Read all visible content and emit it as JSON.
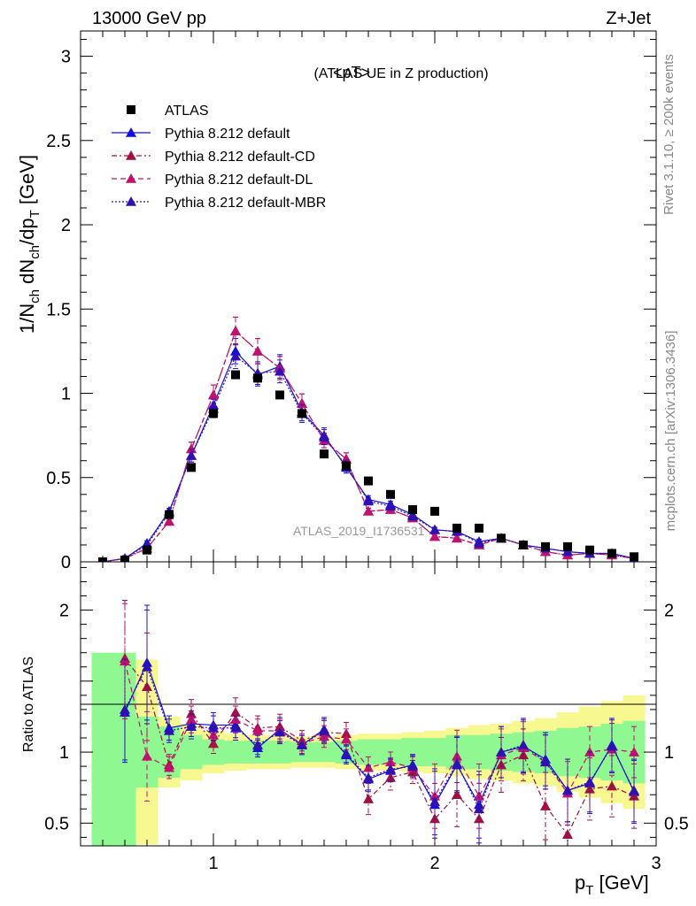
{
  "header": {
    "energy_label": "13000 GeV pp",
    "process_label": "Z+Jet",
    "observable_title": "<pT>",
    "observable_subtitle": "(ATLAS UE in Z production)",
    "watermark": "ATLAS_2019_I1736531",
    "side_rivet": "Rivet 3.1.10, ≥ 200k events",
    "side_mcplots": "mcplots.cern.ch [arXiv:1306.3436]"
  },
  "colors": {
    "atlas": "#000000",
    "default": "#1010dd",
    "cd": "#a01040",
    "dl": "#c01070",
    "mbr": "#3010b0",
    "band_inner": "#90f890",
    "band_outer": "#f8f890"
  },
  "chart_data": [
    {
      "type": "scatter",
      "panel": "main",
      "ylabel": "1/N_ch dN_ch/dp_T [GeV]",
      "ylim": [
        0,
        3.15
      ],
      "y_ticks": [
        0,
        0.5,
        1,
        1.5,
        2,
        2.5,
        3
      ],
      "y_tick_labels": [
        "0",
        "0.5",
        "1",
        "1.5",
        "2",
        "2.5",
        "3"
      ],
      "legend_placement": "top-left",
      "x": [
        0.5,
        0.6,
        0.7,
        0.8,
        0.9,
        1.0,
        1.1,
        1.2,
        1.3,
        1.4,
        1.5,
        1.6,
        1.7,
        1.8,
        1.9,
        2.0,
        2.1,
        2.2,
        2.3,
        2.4,
        2.5,
        2.6,
        2.7,
        2.8,
        2.9
      ],
      "series": [
        {
          "name": "ATLAS",
          "style": "marker",
          "values": [
            0.0,
            0.01,
            0.07,
            0.28,
            0.56,
            0.88,
            1.11,
            1.09,
            0.99,
            0.88,
            0.64,
            0.57,
            0.48,
            0.4,
            0.31,
            0.3,
            0.2,
            0.2,
            0.14,
            0.1,
            0.09,
            0.09,
            0.07,
            0.05,
            0.03
          ]
        },
        {
          "name": "Pythia 8.212 default",
          "style": "solid",
          "values": [
            0.0,
            0.02,
            0.11,
            0.3,
            0.63,
            0.93,
            1.25,
            1.11,
            1.16,
            0.89,
            0.75,
            0.56,
            0.37,
            0.34,
            0.28,
            0.19,
            0.18,
            0.12,
            0.14,
            0.1,
            0.08,
            0.06,
            0.05,
            0.05,
            0.02
          ]
        },
        {
          "name": "Pythia 8.212 default-CD",
          "style": "dash-dot",
          "values": [
            0.0,
            0.02,
            0.08,
            0.24,
            0.67,
            0.99,
            1.37,
            1.25,
            1.15,
            0.94,
            0.72,
            0.61,
            0.3,
            0.31,
            0.26,
            0.15,
            0.14,
            0.1,
            0.14,
            0.1,
            0.06,
            0.04,
            0.05,
            0.04,
            0.02
          ]
        },
        {
          "name": "Pythia 8.212 default-DL",
          "style": "dashed",
          "values": [
            0.0,
            0.02,
            0.08,
            0.24,
            0.67,
            0.99,
            1.37,
            1.25,
            1.15,
            0.94,
            0.72,
            0.61,
            0.3,
            0.31,
            0.26,
            0.15,
            0.14,
            0.1,
            0.14,
            0.1,
            0.06,
            0.04,
            0.05,
            0.04,
            0.02
          ]
        },
        {
          "name": "Pythia 8.212 default-MBR",
          "style": "dotted",
          "values": [
            0.0,
            0.02,
            0.1,
            0.29,
            0.63,
            0.91,
            1.22,
            1.12,
            1.13,
            0.88,
            0.74,
            0.57,
            0.36,
            0.33,
            0.27,
            0.19,
            0.18,
            0.11,
            0.14,
            0.1,
            0.08,
            0.06,
            0.05,
            0.05,
            0.02
          ]
        }
      ]
    },
    {
      "type": "line",
      "panel": "ratio",
      "ylabel": "Ratio to ATLAS",
      "xlabel": "p_T [GeV]",
      "xlim": [
        0.4,
        3.0
      ],
      "ylim": [
        0.34,
        2.34
      ],
      "y_ticks": [
        0.5,
        1,
        2
      ],
      "y_tick_labels": [
        "0.5",
        "1",
        "2"
      ],
      "x_ticks": [
        1,
        2,
        3
      ],
      "x_tick_labels": [
        "1",
        "2",
        "3"
      ],
      "reference_line": 1,
      "bands": {
        "edges": [
          0.45,
          0.55,
          0.65,
          0.75,
          0.85,
          0.95,
          1.05,
          1.15,
          1.25,
          1.35,
          1.45,
          1.55,
          1.65,
          1.75,
          1.85,
          1.95,
          2.05,
          2.15,
          2.25,
          2.35,
          2.45,
          2.55,
          2.65,
          2.75,
          2.85,
          2.95
        ],
        "inner_half_width": [
          0.7,
          0.7,
          0.25,
          0.18,
          0.12,
          0.09,
          0.08,
          0.08,
          0.08,
          0.07,
          0.07,
          0.08,
          0.09,
          0.09,
          0.1,
          0.1,
          0.12,
          0.12,
          0.13,
          0.14,
          0.15,
          0.17,
          0.18,
          0.2,
          0.22
        ],
        "outer_half_width": [
          0.7,
          0.7,
          0.65,
          0.25,
          0.2,
          0.15,
          0.13,
          0.12,
          0.12,
          0.11,
          0.11,
          0.12,
          0.13,
          0.13,
          0.14,
          0.15,
          0.17,
          0.19,
          0.2,
          0.22,
          0.24,
          0.28,
          0.32,
          0.36,
          0.4
        ]
      },
      "x": [
        0.6,
        0.7,
        0.8,
        0.9,
        1.0,
        1.1,
        1.2,
        1.3,
        1.4,
        1.5,
        1.6,
        1.7,
        1.8,
        1.9,
        2.0,
        2.1,
        2.2,
        2.3,
        2.4,
        2.5,
        2.6,
        2.7,
        2.8,
        2.9
      ],
      "series": [
        {
          "name": "Pythia 8.212 default",
          "style": "solid",
          "values": [
            1.28,
            1.63,
            1.17,
            1.2,
            1.19,
            1.19,
            1.03,
            1.16,
            1.05,
            1.16,
            0.98,
            0.81,
            0.87,
            0.91,
            0.63,
            0.91,
            0.63,
            1.0,
            1.04,
            0.95,
            0.73,
            0.78,
            1.05,
            0.72
          ]
        },
        {
          "name": "Pythia 8.212 default-CD",
          "style": "dash-dot",
          "values": [
            1.66,
            1.46,
            0.91,
            1.27,
            1.06,
            1.28,
            1.17,
            1.18,
            1.08,
            1.14,
            1.13,
            0.67,
            0.82,
            0.86,
            0.53,
            0.7,
            0.53,
            0.91,
            0.98,
            0.62,
            0.42,
            0.74,
            0.76,
            0.69
          ]
        },
        {
          "name": "Pythia 8.212 default-DL",
          "style": "dashed",
          "values": [
            1.64,
            0.97,
            0.89,
            1.23,
            1.12,
            1.23,
            1.15,
            1.15,
            1.06,
            1.11,
            1.09,
            0.89,
            0.93,
            0.89,
            0.69,
            0.97,
            0.69,
            0.98,
            1.03,
            0.93,
            0.71,
            1.0,
            1.02,
            1.0
          ]
        },
        {
          "name": "Pythia 8.212 default-MBR",
          "style": "dotted",
          "values": [
            1.3,
            1.6,
            1.15,
            1.18,
            1.17,
            1.17,
            1.05,
            1.14,
            1.05,
            1.15,
            0.99,
            0.82,
            0.88,
            0.9,
            0.65,
            0.92,
            0.6,
            1.0,
            1.05,
            0.93,
            0.73,
            0.79,
            1.04,
            0.73
          ]
        }
      ]
    }
  ]
}
